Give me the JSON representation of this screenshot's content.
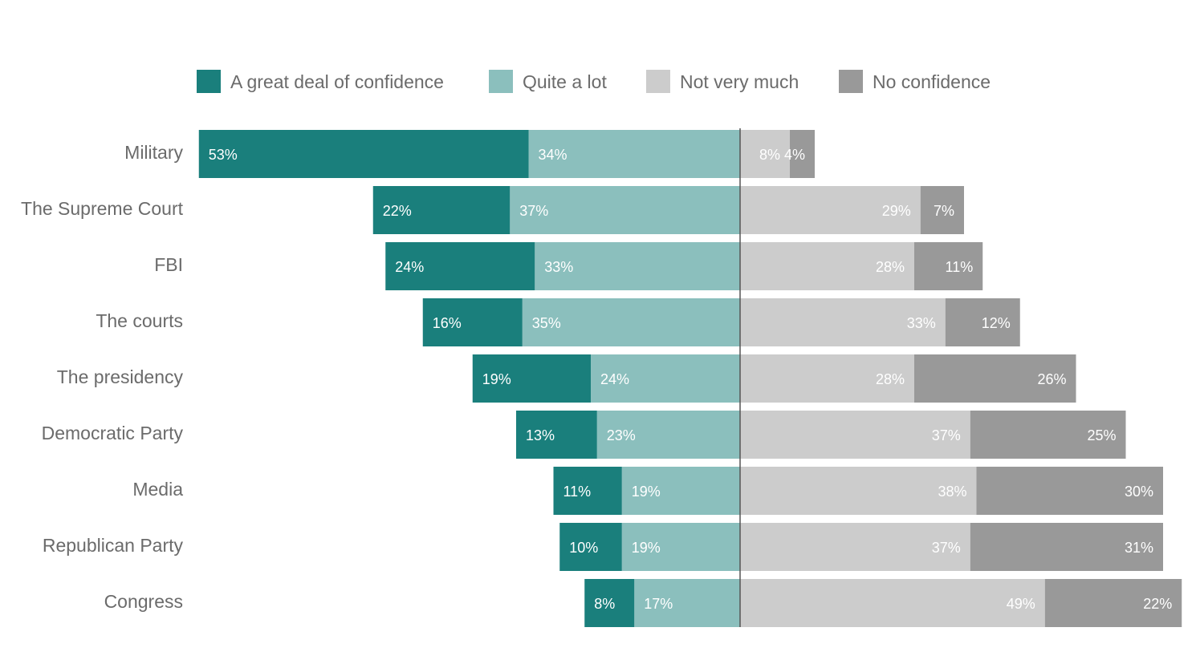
{
  "chart_data": {
    "type": "bar",
    "orientation": "horizontal-diverging",
    "categories": [
      "Military",
      "The Supreme Court",
      "FBI",
      "The courts",
      "The presidency",
      "Democratic Party",
      "Media",
      "Republican Party",
      "Congress"
    ],
    "series": [
      {
        "name": "A great deal of confidence",
        "side": "positive",
        "color": "#1a7f7c",
        "values": [
          53,
          22,
          24,
          16,
          19,
          13,
          11,
          10,
          8
        ],
        "labels": [
          "53%",
          "22%",
          "24%",
          "16%",
          "19%",
          "13%",
          "11%",
          "10%",
          "8%"
        ]
      },
      {
        "name": "Quite a lot",
        "side": "positive",
        "color": "#8bbfbd",
        "values": [
          34,
          37,
          33,
          35,
          24,
          23,
          19,
          19,
          17
        ],
        "labels": [
          "34%",
          "37%",
          "33%",
          "35%",
          "24%",
          "23%",
          "19%",
          "19%",
          "17%"
        ]
      },
      {
        "name": "Not very much",
        "side": "negative",
        "color": "#cccccc",
        "values": [
          8,
          29,
          28,
          33,
          28,
          37,
          38,
          37,
          49
        ],
        "labels": [
          "8%",
          "29%",
          "28%",
          "33%",
          "28%",
          "37%",
          "38%",
          "37%",
          "49%"
        ]
      },
      {
        "name": "No confidence",
        "side": "negative",
        "color": "#999999",
        "values": [
          4,
          7,
          11,
          12,
          26,
          25,
          30,
          31,
          22
        ],
        "labels": [
          "4%",
          "7%",
          "11%",
          "12%",
          "26%",
          "25%",
          "30%",
          "31%",
          "22%"
        ]
      }
    ],
    "legend_position": "top",
    "grid": false,
    "centerline_color": "#555555",
    "text_color": "#6b6b6b",
    "bar_label_color": "#ffffff"
  }
}
